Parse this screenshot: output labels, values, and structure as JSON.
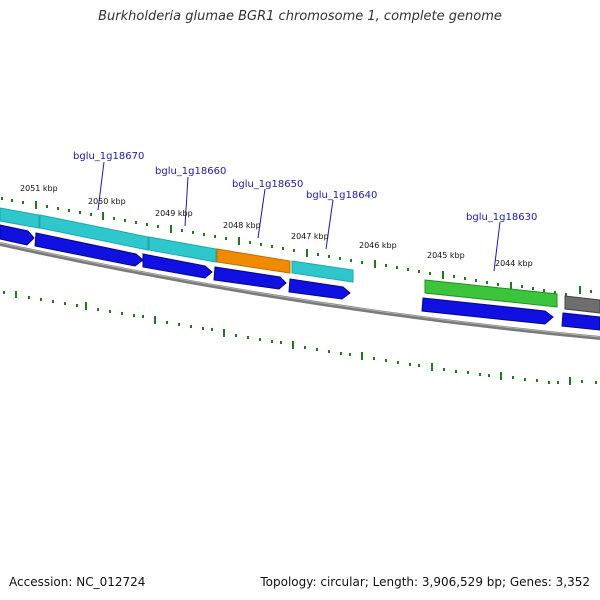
{
  "title": "Burkholderia glumae BGR1 chromosome 1, complete genome",
  "footer": {
    "accession": "Accession: NC_012724",
    "topology": "Topology: circular; Length: 3,906,529 bp; Genes: 3,352"
  },
  "gene_labels": [
    "bglu_1g18670",
    "bglu_1g18660",
    "bglu_1g18650",
    "bglu_1g18640",
    "bglu_1g18630"
  ],
  "kbp_labels": [
    "2051 kbp",
    "2050 kbp",
    "2049 kbp",
    "2048 kbp",
    "2047 kbp",
    "2046 kbp",
    "2045 kbp",
    "2044 kbp"
  ],
  "colors": {
    "cyan": "#2ec8cc",
    "orange": "#f08a00",
    "green": "#3cc43c",
    "gray": "#707070",
    "blue": "#1010e0",
    "tick": "#1f7a1f",
    "backbone": "#888888",
    "label": "#1a1ab0"
  }
}
